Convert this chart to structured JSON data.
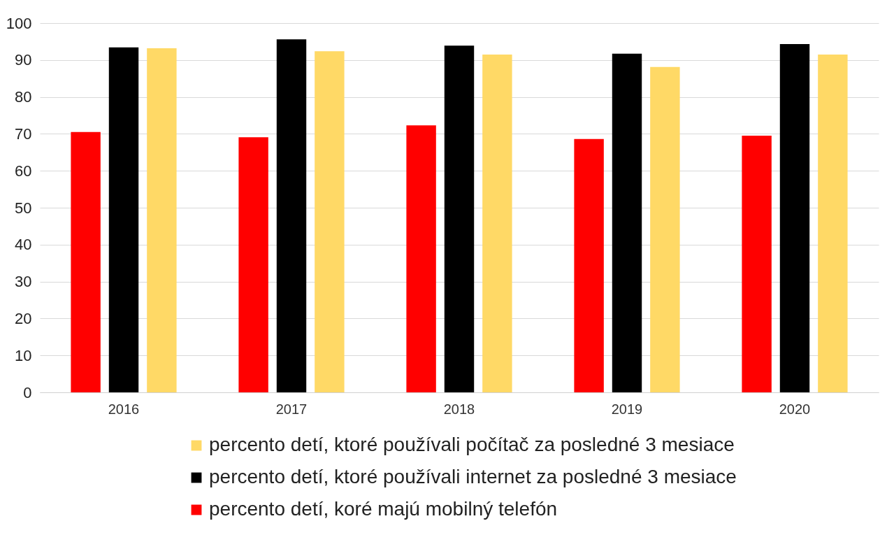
{
  "chart_data": {
    "type": "bar",
    "categories": [
      "2016",
      "2017",
      "2018",
      "2019",
      "2020"
    ],
    "series": [
      {
        "name": "percento detí, koré majú mobilný telefón",
        "color": "#ff0000",
        "values": [
          70.5,
          69.1,
          72.3,
          68.6,
          69.5
        ]
      },
      {
        "name": "percento detí, ktoré používali internet za posledné 3 mesiace",
        "color": "#000000",
        "values": [
          93.4,
          95.6,
          93.9,
          91.7,
          94.3
        ]
      },
      {
        "name": "percento detí, ktoré používali počítač za posledné 3 mesiace",
        "color": "#ffd966",
        "values": [
          93.2,
          92.4,
          91.5,
          88.1,
          91.5
        ]
      }
    ],
    "ylim": [
      0,
      100
    ],
    "yticks": [
      0,
      10,
      20,
      30,
      40,
      50,
      60,
      70,
      80,
      90,
      100
    ],
    "grid": "y",
    "legend": "bottom"
  }
}
